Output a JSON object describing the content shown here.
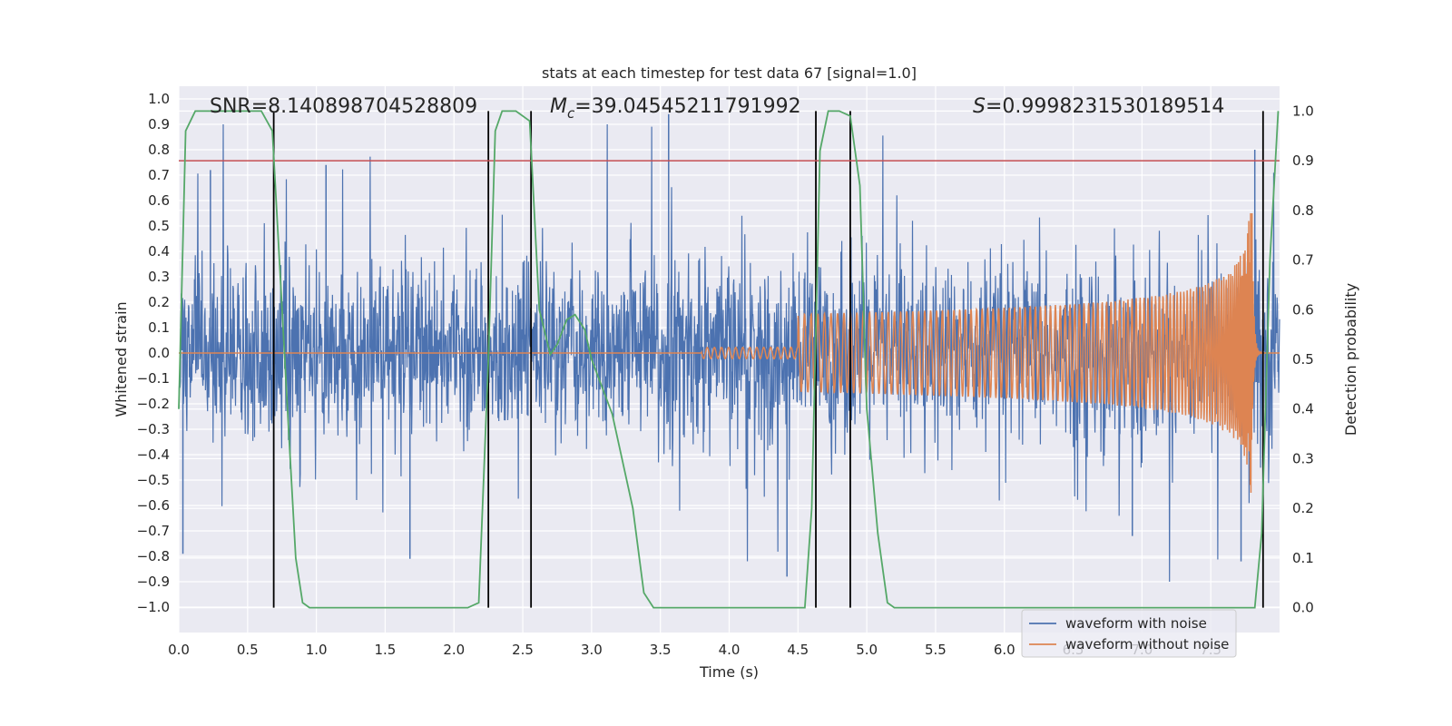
{
  "chart_data": {
    "type": "line",
    "title": "stats at each timestep for test data 67 [signal=1.0]",
    "xlabel": "Time (s)",
    "ylabel_left": "Whitened strain",
    "ylabel_right": "Detection probability",
    "xlim": [
      0.0,
      8.0
    ],
    "ylim_left": [
      -1.1,
      1.05
    ],
    "ylim_right": [
      -0.05,
      1.05
    ],
    "grid": true,
    "x_ticks": [
      "0.0",
      "0.5",
      "1.0",
      "1.5",
      "2.0",
      "2.5",
      "3.0",
      "3.5",
      "4.0",
      "4.5",
      "5.0",
      "5.5",
      "6.0",
      "6.5",
      "7.0",
      "7.5"
    ],
    "y_left_ticks": [
      "1.0",
      "0.9",
      "0.8",
      "0.7",
      "0.6",
      "0.5",
      "0.4",
      "0.3",
      "0.2",
      "0.1",
      "0.0",
      "−0.1",
      "−0.2",
      "−0.3",
      "−0.4",
      "−0.5",
      "−0.6",
      "−0.7",
      "−0.8",
      "−0.9",
      "−1.0"
    ],
    "y_right_ticks": [
      "1.0",
      "0.9",
      "0.8",
      "0.7",
      "0.6",
      "0.5",
      "0.4",
      "0.3",
      "0.2",
      "0.1",
      "0.0"
    ],
    "annotations": {
      "snr": "SNR=8.140898704528809",
      "mc": "=39.04545211791992",
      "s": "=0.9998231530189514"
    },
    "threshold_line": {
      "value": 0.9,
      "axis": "right",
      "color": "#c44e52"
    },
    "detection_boundaries_s": [
      0.69,
      2.25,
      2.56,
      4.63,
      4.88,
      7.88
    ],
    "series": [
      {
        "name": "waveform with noise",
        "color": "#4c72b0",
        "axis": "left",
        "style": "noise",
        "peaks": [
          {
            "x": 0.23,
            "y": 0.72
          },
          {
            "x": 1.07,
            "y": 0.74
          },
          {
            "x": 3.56,
            "y": 0.94
          },
          {
            "x": 4.42,
            "y": -0.88
          },
          {
            "x": 7.72,
            "y": -0.82
          },
          {
            "x": 7.82,
            "y": 0.8
          },
          {
            "x": 0.03,
            "y": -0.79
          },
          {
            "x": 1.68,
            "y": -0.81
          },
          {
            "x": 6.93,
            "y": -0.72
          }
        ]
      },
      {
        "name": "waveform without noise",
        "color": "#dd8452",
        "axis": "left",
        "style": "chirp",
        "merger_time": 7.8,
        "merger_amplitude": 0.55
      },
      {
        "name": "detection probability",
        "color": "#55a868",
        "axis": "right",
        "show_in_legend": false,
        "points": [
          [
            0.0,
            0.4
          ],
          [
            0.05,
            0.96
          ],
          [
            0.12,
            1.0
          ],
          [
            0.6,
            1.0
          ],
          [
            0.68,
            0.96
          ],
          [
            0.8,
            0.35
          ],
          [
            0.85,
            0.1
          ],
          [
            0.9,
            0.01
          ],
          [
            0.95,
            0.0
          ],
          [
            2.1,
            0.0
          ],
          [
            2.18,
            0.01
          ],
          [
            2.25,
            0.5
          ],
          [
            2.3,
            0.96
          ],
          [
            2.35,
            1.0
          ],
          [
            2.45,
            1.0
          ],
          [
            2.55,
            0.98
          ],
          [
            2.62,
            0.6
          ],
          [
            2.7,
            0.51
          ],
          [
            2.75,
            0.53
          ],
          [
            2.82,
            0.58
          ],
          [
            2.88,
            0.59
          ],
          [
            2.95,
            0.56
          ],
          [
            3.0,
            0.5
          ],
          [
            3.15,
            0.39
          ],
          [
            3.3,
            0.2
          ],
          [
            3.38,
            0.03
          ],
          [
            3.45,
            0.0
          ],
          [
            4.55,
            0.0
          ],
          [
            4.6,
            0.2
          ],
          [
            4.66,
            0.92
          ],
          [
            4.72,
            1.0
          ],
          [
            4.8,
            1.0
          ],
          [
            4.88,
            0.99
          ],
          [
            4.95,
            0.85
          ],
          [
            5.0,
            0.4
          ],
          [
            5.08,
            0.15
          ],
          [
            5.15,
            0.01
          ],
          [
            5.2,
            0.0
          ],
          [
            7.82,
            0.0
          ],
          [
            7.87,
            0.15
          ],
          [
            7.93,
            0.7
          ],
          [
            7.99,
            1.0
          ]
        ]
      }
    ],
    "legend": {
      "location": "lower-right"
    }
  }
}
